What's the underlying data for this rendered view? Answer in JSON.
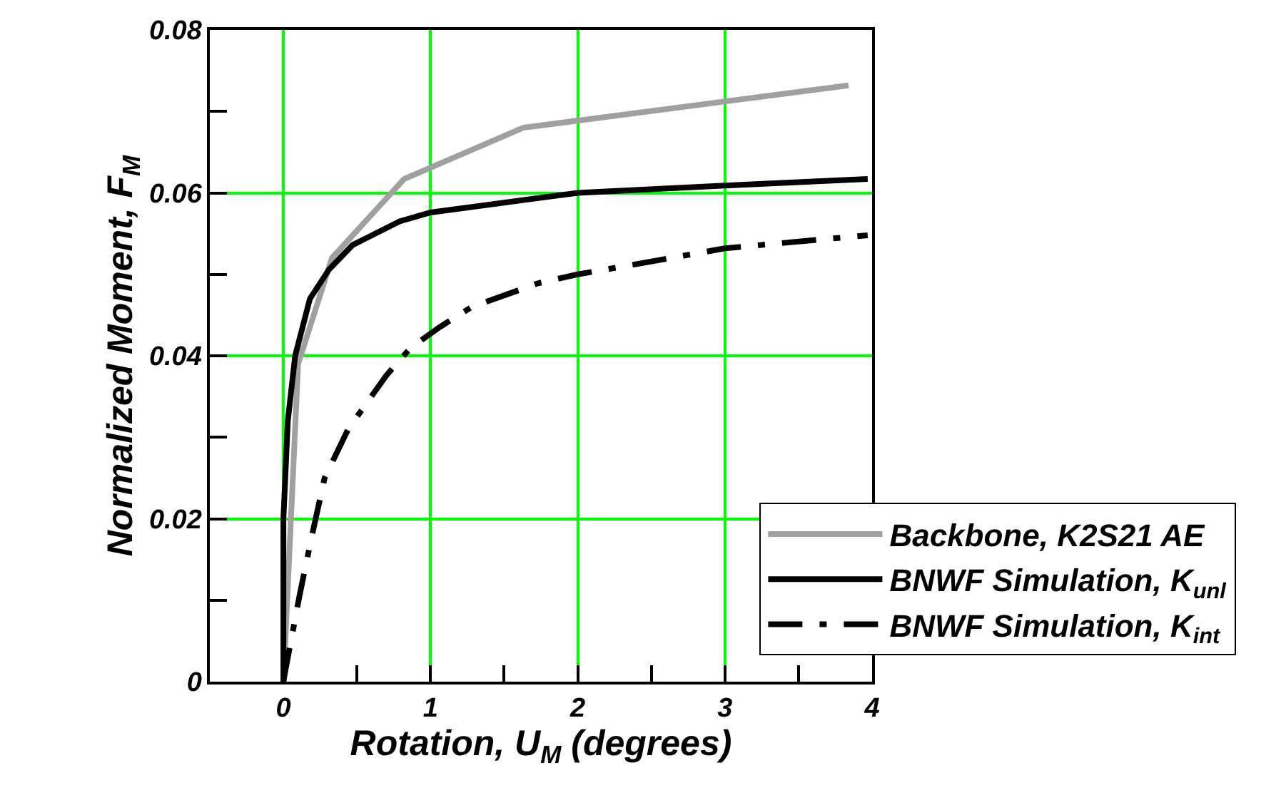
{
  "chart_data": {
    "type": "line",
    "xlabel": "Rotation, U$_{M}$ (degrees)",
    "ylabel": "Normalized Moment, F$_{M}$",
    "xlim": [
      -0.5,
      4
    ],
    "ylim": [
      0,
      0.08
    ],
    "xticks": [
      0,
      1,
      2,
      3,
      4,
      {
        "value": 0.5,
        "label": null
      },
      {
        "value": 1.5,
        "label": null
      },
      {
        "value": 2.5,
        "label": null
      },
      {
        "value": 3.5,
        "label": null
      }
    ],
    "yticks": [
      0,
      0.02,
      0.04,
      0.06,
      0.08,
      {
        "value": 0.01,
        "label": null
      },
      {
        "value": 0.03,
        "label": null
      },
      {
        "value": 0.05,
        "label": null
      },
      {
        "value": 0.07,
        "label": null
      }
    ],
    "grid": true,
    "legend": "bottom right",
    "marker": "none",
    "series": [
      {
        "name": "Backbone, K2S21 AE",
        "color": "#a0a0a0",
        "line_style": "solid",
        "x": [
          0,
          0.1,
          0.33,
          0.82,
          1.63,
          3.84
        ],
        "values": [
          0,
          0.039,
          0.052,
          0.0617,
          0.068,
          0.0732
        ]
      },
      {
        "name": "BNWF Simulation, K$_{unl}$",
        "color": "#000000",
        "line_style": "solid",
        "x": [
          0,
          0.0,
          0.03,
          0.08,
          0.18,
          0.31,
          0.47,
          0.79,
          1.0,
          2.0,
          3.0,
          3.97
        ],
        "values": [
          0,
          0.02,
          0.032,
          0.04,
          0.047,
          0.0506,
          0.0536,
          0.0565,
          0.0576,
          0.06,
          0.0609,
          0.0617
        ]
      },
      {
        "name": "BNWF Simulation, K$_{int}$",
        "color": "#000000",
        "line_style": "dashdot",
        "x": [
          0,
          0.02,
          0.11,
          0.19,
          0.28,
          0.44,
          0.7,
          0.86,
          1.06,
          1.28,
          1.73,
          2.0,
          2.57,
          3.0,
          3.97
        ],
        "values": [
          0,
          0.002,
          0.0106,
          0.0176,
          0.025,
          0.031,
          0.0376,
          0.0409,
          0.0435,
          0.046,
          0.0489,
          0.05,
          0.0518,
          0.0532,
          0.0548
        ]
      }
    ]
  }
}
